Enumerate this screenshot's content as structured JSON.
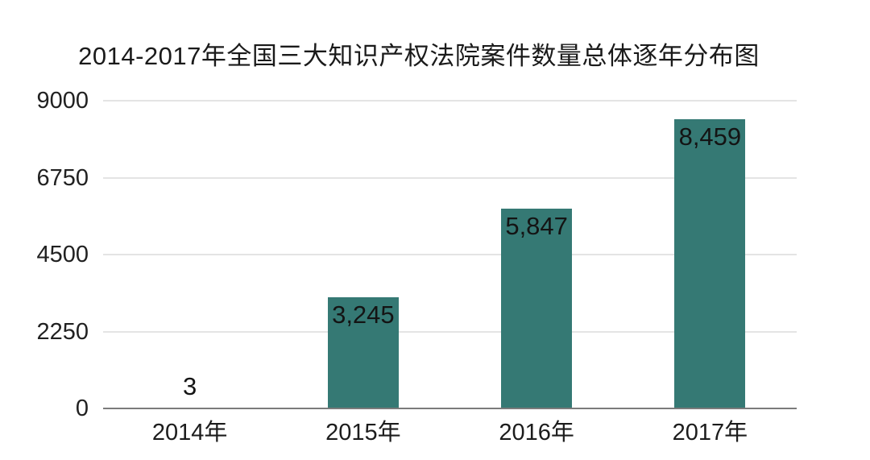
{
  "page": {
    "background_color": "#ffffff"
  },
  "chart_data": {
    "type": "bar",
    "title": "2014-2017年全国三大知识产权法院案件数量总体逐年分布图",
    "categories": [
      "2014年",
      "2015年",
      "2016年",
      "2017年"
    ],
    "values": [
      3,
      3245,
      5847,
      8459
    ],
    "value_labels": [
      "3",
      "3,245",
      "5,847",
      "8,459"
    ],
    "xlabel": "",
    "ylabel": "",
    "ylim": [
      0,
      9000
    ],
    "yticks": [
      0,
      2250,
      4500,
      6750,
      9000
    ],
    "ytick_labels": [
      "0",
      "2250",
      "4500",
      "6750",
      "9000"
    ],
    "grid": true,
    "legend": "none",
    "bar_color": "#357974",
    "grid_color": "#e4e4e4",
    "axis_line_color": "#7b7b7b",
    "title_color": "#1a1a1a",
    "tick_label_color": "#212121",
    "value_label_color": "#141414"
  }
}
